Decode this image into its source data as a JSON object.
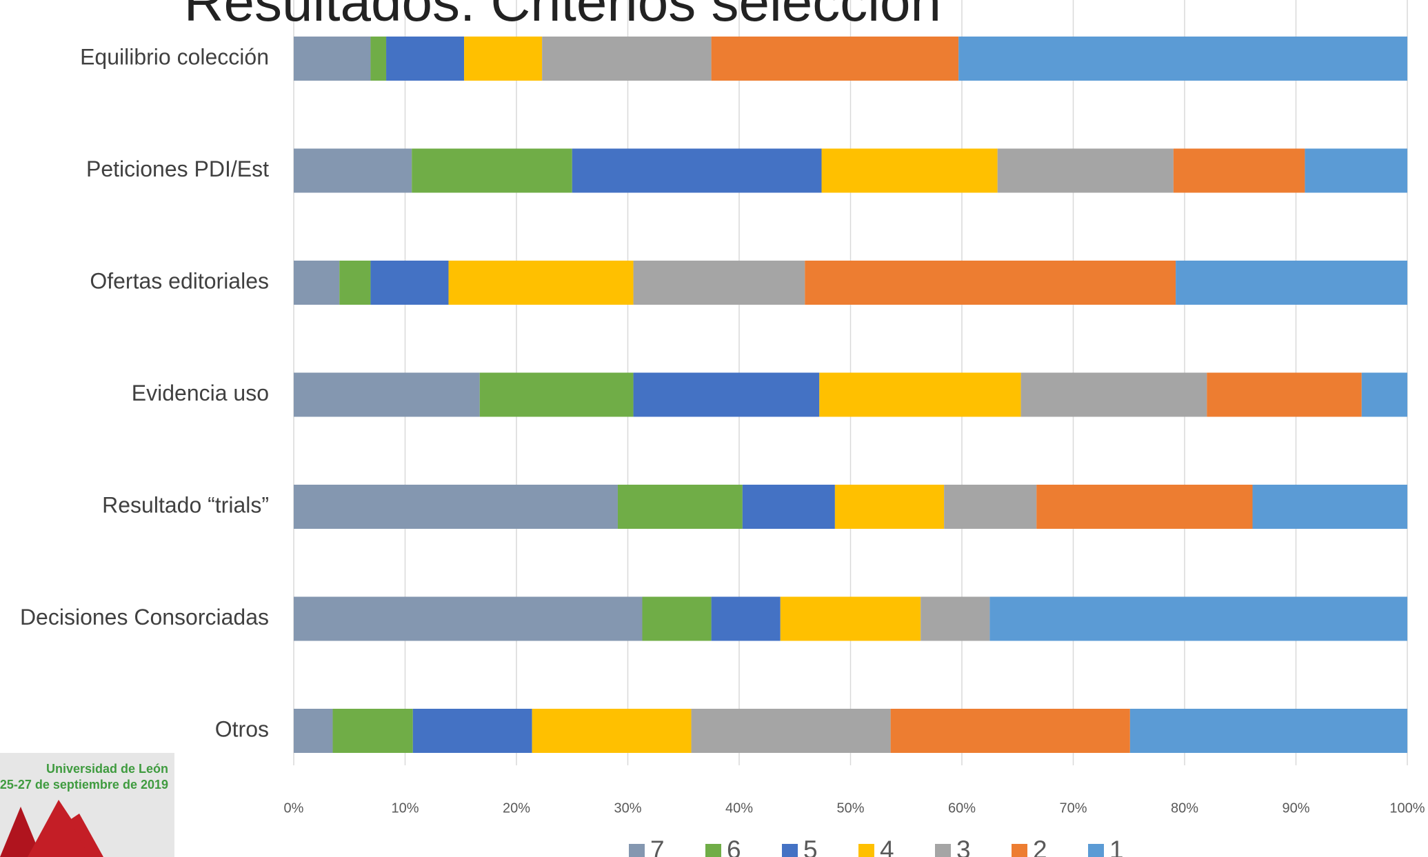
{
  "title": "Resultados: Criterios selección",
  "logo": {
    "line1": "Universidad de León",
    "line2": "25-27 de septiembre de 2019"
  },
  "chart_data": {
    "type": "stacked_barh",
    "categories": [
      "Equilibrio colección",
      "Peticiones PDI/Est",
      "Ofertas editoriales",
      "Evidencia uso",
      "Resultado “trials”",
      "Decisiones Consorciadas",
      "Otros"
    ],
    "series": [
      {
        "name": "7",
        "color": "#8497b0",
        "values": [
          6.9,
          10.6,
          4.1,
          16.7,
          29.1,
          31.3,
          3.5
        ]
      },
      {
        "name": "6",
        "color": "#70ad47",
        "values": [
          1.4,
          14.4,
          2.8,
          13.8,
          11.2,
          6.2,
          7.2
        ]
      },
      {
        "name": "5",
        "color": "#4472c4",
        "values": [
          7.0,
          22.4,
          7.0,
          16.7,
          8.3,
          6.2,
          10.7
        ]
      },
      {
        "name": "4",
        "color": "#ffc000",
        "values": [
          7.0,
          15.8,
          16.6,
          18.1,
          9.8,
          12.6,
          14.3
        ]
      },
      {
        "name": "3",
        "color": "#a5a5a5",
        "values": [
          15.2,
          15.8,
          15.4,
          16.7,
          8.3,
          6.2,
          17.9
        ]
      },
      {
        "name": "2",
        "color": "#ed7d31",
        "values": [
          22.2,
          11.8,
          33.3,
          13.9,
          19.4,
          0,
          21.5
        ]
      },
      {
        "name": "1",
        "color": "#5b9bd5",
        "values": [
          40.3,
          9.2,
          20.8,
          4.1,
          13.9,
          37.5,
          24.9
        ]
      }
    ],
    "xlim": [
      0,
      100
    ],
    "xticks": [
      {
        "value": 0,
        "label": "0%"
      },
      {
        "value": 10,
        "label": "10%"
      },
      {
        "value": 20,
        "label": "20%"
      },
      {
        "value": 30,
        "label": "30%"
      },
      {
        "value": 40,
        "label": "40%"
      },
      {
        "value": 50,
        "label": "50%"
      },
      {
        "value": 60,
        "label": "60%"
      },
      {
        "value": 70,
        "label": "70%"
      },
      {
        "value": 80,
        "label": "80%"
      },
      {
        "value": 90,
        "label": "90%"
      },
      {
        "value": 100,
        "label": "100%"
      }
    ],
    "grid": true,
    "legend": "bottom"
  }
}
